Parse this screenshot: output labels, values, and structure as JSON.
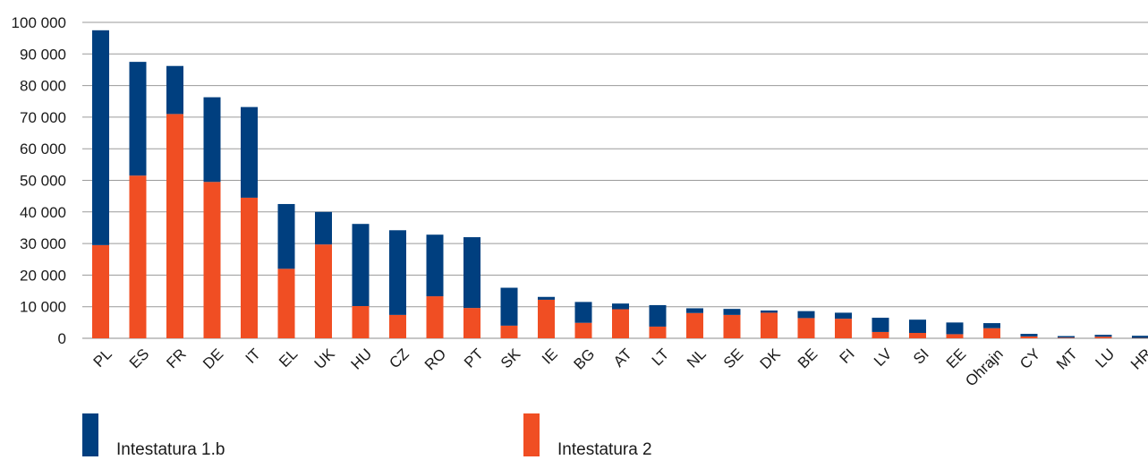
{
  "chart_data": {
    "type": "bar",
    "stacked": true,
    "categories": [
      "PL",
      "ES",
      "FR",
      "DE",
      "IT",
      "EL",
      "UK",
      "HU",
      "CZ",
      "RO",
      "PT",
      "SK",
      "IE",
      "BG",
      "AT",
      "LT",
      "NL",
      "SE",
      "DK",
      "BE",
      "FI",
      "LV",
      "SI",
      "EE",
      "Ohrajn",
      "CY",
      "MT",
      "LU",
      "HR"
    ],
    "series": [
      {
        "name": "Intestatura 2",
        "color": "#f04e23",
        "values": [
          29500,
          51500,
          71000,
          49500,
          44500,
          22000,
          29700,
          10200,
          7400,
          13300,
          9600,
          4000,
          12200,
          4900,
          9200,
          3700,
          8000,
          7400,
          8100,
          6400,
          6200,
          2000,
          1700,
          1300,
          3200,
          600,
          200,
          500,
          100
        ]
      },
      {
        "name": "Intestatura 1.b",
        "color": "#003f7f",
        "values": [
          68000,
          36000,
          15200,
          26800,
          28700,
          20500,
          10300,
          26000,
          26800,
          19500,
          22400,
          12000,
          900,
          6600,
          1800,
          6800,
          1500,
          1900,
          700,
          2200,
          1900,
          4500,
          4200,
          3700,
          1600,
          800,
          500,
          600,
          700
        ]
      }
    ],
    "y_ticks": [
      "0",
      "10 000",
      "20 000",
      "30 000",
      "40 000",
      "50 000",
      "60 000",
      "70 000",
      "80 000",
      "90 000",
      "100 000"
    ],
    "ylim": [
      0,
      100000
    ],
    "grid": true,
    "legend_position": "bottom"
  },
  "legend": {
    "item1": {
      "label": "Intestatura 1.b",
      "color": "#003f7f"
    },
    "item2": {
      "label": "Intestatura 2",
      "color": "#f04e23"
    }
  }
}
